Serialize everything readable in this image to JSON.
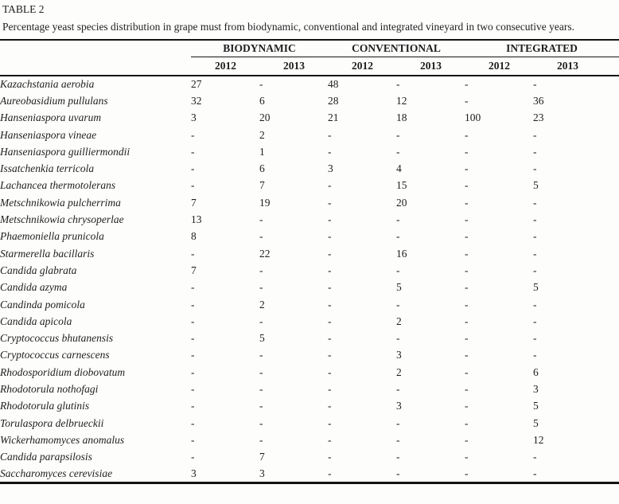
{
  "table_label": "TABLE 2",
  "caption": "Percentage yeast species distribution in grape must from biodynamic, conventional and integrated vineyard in two consecutive years.",
  "colors": {
    "text": "#1e1e1e",
    "rule": "#141414",
    "background": "#fdfdfc"
  },
  "chart_data": {
    "type": "table",
    "title": "Percentage yeast species distribution in grape must from biodynamic, conventional and integrated vineyard in two consecutive years.",
    "groups": [
      "BIODYNAMIC",
      "CONVENTIONAL",
      "INTEGRATED"
    ],
    "year_columns": [
      "2012",
      "2013",
      "2012",
      "2013",
      "2012",
      "2013"
    ],
    "rows": [
      {
        "species": "Kazachstania aerobia",
        "values": [
          "27",
          "-",
          "48",
          "-",
          "-",
          "-"
        ]
      },
      {
        "species": "Aureobasidium pullulans",
        "values": [
          "32",
          "6",
          "28",
          "12",
          "-",
          "36"
        ]
      },
      {
        "species": "Hanseniaspora uvarum",
        "values": [
          "3",
          "20",
          "21",
          "18",
          "100",
          "23"
        ]
      },
      {
        "species": "Hanseniaspora vineae",
        "values": [
          "-",
          "2",
          "-",
          "-",
          "-",
          "-"
        ]
      },
      {
        "species": "Hanseniaspora guilliermondii",
        "values": [
          "-",
          "1",
          "-",
          "-",
          "-",
          "-"
        ]
      },
      {
        "species": "Issatchenkia terricola",
        "values": [
          "-",
          "6",
          "3",
          "4",
          "-",
          "-"
        ]
      },
      {
        "species": "Lachancea thermotolerans",
        "values": [
          "-",
          "7",
          "-",
          "15",
          "-",
          "5"
        ]
      },
      {
        "species": "Metschnikowia pulcherrima",
        "values": [
          "7",
          "19",
          "-",
          "20",
          "-",
          "-"
        ]
      },
      {
        "species": "Metschnikowia chrysoperlae",
        "values": [
          "13",
          "-",
          "-",
          "-",
          "-",
          "-"
        ]
      },
      {
        "species": "Phaemoniella prunicola",
        "values": [
          "8",
          "-",
          "-",
          "-",
          "-",
          "-"
        ]
      },
      {
        "species": "Starmerella bacillaris",
        "values": [
          "-",
          "22",
          "-",
          "16",
          "-",
          "-"
        ]
      },
      {
        "species": "Candida glabrata",
        "values": [
          "7",
          "-",
          "-",
          "-",
          "-",
          "-"
        ]
      },
      {
        "species": "Candida azyma",
        "values": [
          "-",
          "-",
          "-",
          "5",
          "-",
          "5"
        ]
      },
      {
        "species": "Candinda pomicola",
        "values": [
          "-",
          "2",
          "-",
          "-",
          "-",
          "-"
        ]
      },
      {
        "species": "Candida apicola",
        "values": [
          "-",
          "-",
          "-",
          "2",
          "-",
          "-"
        ]
      },
      {
        "species": "Cryptococcus bhutanensis",
        "values": [
          "-",
          "5",
          "-",
          "-",
          "-",
          "-"
        ]
      },
      {
        "species": "Cryptococcus carnescens",
        "values": [
          "-",
          "-",
          "-",
          "3",
          "-",
          "-"
        ]
      },
      {
        "species": "Rhodosporidium diobovatum",
        "values": [
          "-",
          "-",
          "-",
          "2",
          "-",
          "6"
        ]
      },
      {
        "species": "Rhodotorula nothofagi",
        "values": [
          "-",
          "-",
          "-",
          "-",
          "-",
          "3"
        ]
      },
      {
        "species": "Rhodotorula glutinis",
        "values": [
          "-",
          "-",
          "-",
          "3",
          "-",
          "5"
        ]
      },
      {
        "species": "Torulaspora delbrueckii",
        "values": [
          "-",
          "-",
          "-",
          "-",
          "-",
          "5"
        ]
      },
      {
        "species": "Wickerhamomyces anomalus",
        "values": [
          "-",
          "-",
          "-",
          "-",
          "-",
          "12"
        ]
      },
      {
        "species": "Candida parapsilosis",
        "values": [
          "-",
          "7",
          "-",
          "-",
          "-",
          "-"
        ]
      },
      {
        "species": "Saccharomyces cerevisiae",
        "values": [
          "3",
          "3",
          "-",
          "-",
          "-",
          "-"
        ]
      }
    ]
  }
}
